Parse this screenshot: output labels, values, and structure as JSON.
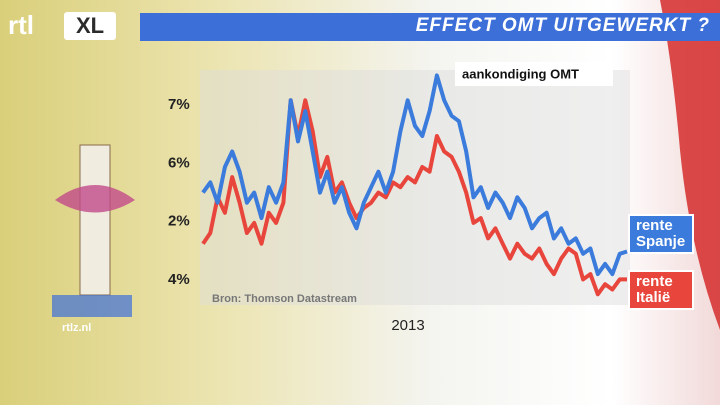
{
  "logo": {
    "text": "rtl",
    "badge": "XL"
  },
  "website": "rtlz.nl",
  "chart_data": {
    "type": "line",
    "title": "EFFECT OMT UITGEWERKT ?",
    "annotation": "aankondiging OMT",
    "source": "Bron: Thomson Datastream",
    "xlabel": "2013",
    "y_labels": [
      "7%",
      "6%",
      "2%",
      "4%"
    ],
    "ylim": [
      3.65,
      7.6
    ],
    "series": [
      {
        "name": "rente Spanje",
        "color": "#3a7bdc",
        "values": [
          5.54,
          5.71,
          5.37,
          5.97,
          6.23,
          5.89,
          5.37,
          5.54,
          5.11,
          5.63,
          5.37,
          5.71,
          7.09,
          6.4,
          6.91,
          6.23,
          5.54,
          5.89,
          5.37,
          5.63,
          5.2,
          4.94,
          5.37,
          5.63,
          5.89,
          5.54,
          5.89,
          6.57,
          7.09,
          6.66,
          6.49,
          6.91,
          7.51,
          7.09,
          6.83,
          6.74,
          6.23,
          5.46,
          5.63,
          5.28,
          5.54,
          5.37,
          5.11,
          5.46,
          5.28,
          4.94,
          5.11,
          5.2,
          4.77,
          4.94,
          4.68,
          4.77,
          4.51,
          4.6,
          4.17,
          4.34,
          4.17,
          4.51,
          4.55
        ]
      },
      {
        "name": "rente Italië",
        "color": "#e8463c",
        "values": [
          4.68,
          4.86,
          5.46,
          5.2,
          5.8,
          5.37,
          4.86,
          5.03,
          4.68,
          5.2,
          5.03,
          5.37,
          7.09,
          6.49,
          7.09,
          6.57,
          5.8,
          6.14,
          5.54,
          5.71,
          5.37,
          5.11,
          5.28,
          5.37,
          5.54,
          5.46,
          5.71,
          5.63,
          5.8,
          5.71,
          5.97,
          5.89,
          6.49,
          6.23,
          6.14,
          5.89,
          5.54,
          5.03,
          5.11,
          4.77,
          4.94,
          4.68,
          4.43,
          4.68,
          4.51,
          4.43,
          4.6,
          4.34,
          4.17,
          4.43,
          4.6,
          4.51,
          4.08,
          4.17,
          3.83,
          4.0,
          3.91,
          4.08,
          4.08
        ]
      }
    ]
  }
}
